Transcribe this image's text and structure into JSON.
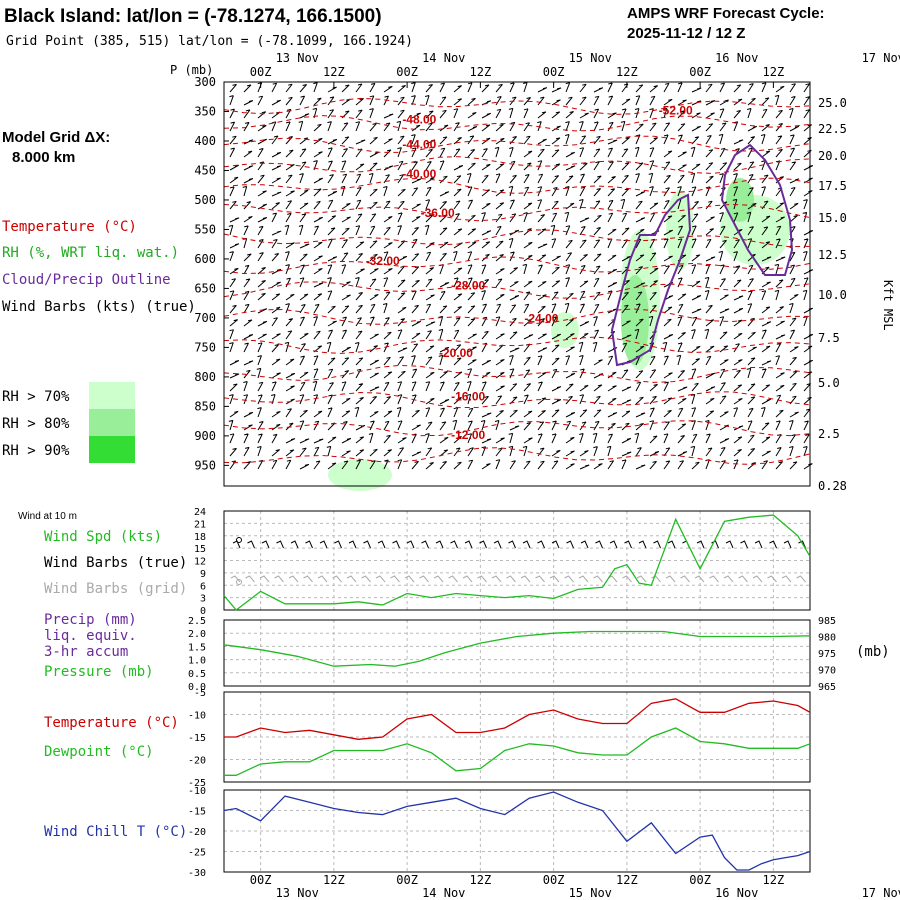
{
  "header": {
    "station_title": "Black Island:  lat/lon = (-78.1274, 166.1500)",
    "grid_point": "Grid Point (385, 515) lat/lon = (-78.1099, 166.1924)",
    "forecast_label": "AMPS WRF Forecast Cycle:",
    "forecast_cycle": "2025-11-12 / 12  Z"
  },
  "legend": {
    "model_grid": "Model Grid ΔX:",
    "model_dx": "8.000 km",
    "temperature": "Temperature (°C)",
    "rh": "RH (%, WRT liq. wat.)",
    "cloud": "Cloud/Precip Outline",
    "wind_barbs": "Wind Barbs (kts) (true)",
    "rh_levels": [
      {
        "label": "RH > 70%",
        "color": "#ccffcc"
      },
      {
        "label": "RH > 80%",
        "color": "#99ee99"
      },
      {
        "label": "RH > 90%",
        "color": "#33dd33"
      }
    ]
  },
  "colors": {
    "temperature": "#cc0000",
    "rh_label": "#22aa22",
    "cloud": "#6a2b9a",
    "wind_speed": "#22bb22",
    "grid_barbs": "#aaaaaa",
    "dewpoint": "#22bb22",
    "windchill": "#2233aa"
  },
  "time_axis": {
    "hour_labels": [
      "00Z",
      "12Z",
      "00Z",
      "12Z",
      "00Z",
      "12Z",
      "00Z",
      "12Z",
      "00Z",
      "12Z"
    ],
    "day_labels": [
      "13 Nov",
      "14 Nov",
      "15 Nov",
      "16 Nov",
      "17 Nov"
    ]
  },
  "chart_data": [
    {
      "type": "heatmap",
      "name": "upper-air-cross-section",
      "ylabel": "P (mb)",
      "pressure_ticks": [
        "300",
        "350",
        "400",
        "450",
        "500",
        "550",
        "600",
        "650",
        "700",
        "750",
        "800",
        "850",
        "900",
        "950"
      ],
      "pressure_range": [
        300,
        985
      ],
      "height_label": "Kft MSL",
      "height_ticks": [
        "25.0",
        "22.5",
        "20.0",
        "17.5",
        "15.0",
        "12.5",
        "10.0",
        "7.5",
        "5.0",
        "2.5",
        "0.28"
      ],
      "time_range_hours": [
        -6,
        90
      ],
      "isotherm_labels": [
        {
          "text": "-52.00",
          "t": 68,
          "p": 355
        },
        {
          "text": "-48.00",
          "t": 26,
          "p": 370
        },
        {
          "text": "-44.00",
          "t": 26,
          "p": 413
        },
        {
          "text": "-40.00",
          "t": 26,
          "p": 463
        },
        {
          "text": "-36.00",
          "t": 29,
          "p": 529
        },
        {
          "text": "-32.00",
          "t": 20,
          "p": 610
        },
        {
          "text": "-28.00",
          "t": 34,
          "p": 652
        },
        {
          "text": "-24.00",
          "t": 46,
          "p": 708
        },
        {
          "text": "-20.00",
          "t": 32,
          "p": 766
        },
        {
          "text": "-16.00",
          "t": 34,
          "p": 840
        },
        {
          "text": "-12.00",
          "t": 34,
          "p": 905
        }
      ]
    },
    {
      "type": "line",
      "name": "surface-wind-speed",
      "label": "Wind at 10 m",
      "series_labels": [
        "Wind Spd (kts)",
        "Wind Barbs (true)",
        "Wind Barbs (grid)"
      ],
      "ylim": [
        0,
        24
      ],
      "yticks": [
        "0",
        "3",
        "6",
        "9",
        "12",
        "15",
        "18",
        "21",
        "24"
      ],
      "x": [
        -6,
        -4,
        0,
        4,
        8,
        12,
        16,
        20,
        24,
        28,
        32,
        36,
        40,
        44,
        48,
        52,
        56,
        58,
        60,
        62,
        64,
        68,
        72,
        76,
        80,
        84,
        88,
        90
      ],
      "values": [
        3.5,
        0,
        4.5,
        1.5,
        1.5,
        1.5,
        2,
        1.2,
        4,
        3,
        4,
        3.5,
        3,
        3.5,
        2.8,
        5,
        5.5,
        10,
        11,
        6.5,
        6,
        22,
        10,
        21.5,
        22.5,
        23,
        18,
        13
      ]
    },
    {
      "type": "line",
      "name": "precip-pressure",
      "series_labels": [
        "Precip (mm)",
        "liq. equiv.",
        "3-hr accum",
        "Pressure (mb)"
      ],
      "ylim_left": [
        0,
        2.5
      ],
      "yticks_left": [
        "0.0",
        "0.5",
        "1.0",
        "1.5",
        "2.0",
        "2.5"
      ],
      "ylim_right": [
        965,
        985
      ],
      "yticks_right": [
        "965",
        "970",
        "975",
        "980",
        "985"
      ],
      "right_label": "(mb)",
      "x": [
        -6,
        0,
        6,
        12,
        18,
        22,
        26,
        30,
        36,
        42,
        48,
        54,
        60,
        66,
        72,
        78,
        84,
        90
      ],
      "values": [
        977.5,
        976,
        974,
        971,
        971.5,
        971,
        972.5,
        975,
        978,
        980,
        981,
        981.5,
        981.5,
        981.5,
        980,
        980,
        980,
        980.2
      ]
    },
    {
      "type": "line",
      "name": "temperature-dewpoint",
      "series_labels": [
        "Temperature (°C)",
        "Dewpoint (°C)"
      ],
      "ylim": [
        -25,
        -5
      ],
      "yticks": [
        "-25",
        "-20",
        "-15",
        "-10",
        "-5"
      ],
      "series": [
        {
          "name": "Temperature (°C)",
          "x": [
            -6,
            -4,
            0,
            4,
            8,
            12,
            16,
            20,
            24,
            28,
            32,
            36,
            40,
            44,
            48,
            52,
            56,
            60,
            64,
            68,
            72,
            76,
            80,
            84,
            88,
            90
          ],
          "values": [
            -15,
            -15,
            -13,
            -14,
            -13.5,
            -14.5,
            -15.5,
            -15,
            -11,
            -10,
            -14,
            -14,
            -13,
            -10,
            -9,
            -11,
            -12,
            -12,
            -7.5,
            -6.5,
            -9.5,
            -9.5,
            -7.5,
            -7,
            -8,
            -9.5
          ]
        },
        {
          "name": "Dewpoint (°C)",
          "x": [
            -6,
            -4,
            0,
            4,
            8,
            12,
            16,
            20,
            24,
            28,
            32,
            36,
            40,
            44,
            48,
            52,
            56,
            60,
            64,
            68,
            72,
            76,
            80,
            84,
            88,
            90
          ],
          "values": [
            -23.5,
            -23.5,
            -21,
            -20.5,
            -20.5,
            -18,
            -18,
            -18,
            -16.5,
            -18.5,
            -22.5,
            -22,
            -18,
            -16.5,
            -17,
            -18.5,
            -19,
            -19,
            -15,
            -13,
            -16,
            -16.5,
            -17.5,
            -17.5,
            -17.5,
            -16.5
          ]
        }
      ]
    },
    {
      "type": "line",
      "name": "wind-chill",
      "series_labels": [
        "Wind Chill T (°C)"
      ],
      "ylim": [
        -30,
        -10
      ],
      "yticks": [
        "-30",
        "-25",
        "-20",
        "-15",
        "-10"
      ],
      "x": [
        -6,
        -4,
        0,
        4,
        8,
        12,
        16,
        20,
        24,
        28,
        32,
        36,
        40,
        44,
        48,
        52,
        56,
        60,
        64,
        68,
        72,
        74,
        76,
        78,
        80,
        82,
        84,
        86,
        88,
        90
      ],
      "values": [
        -15,
        -14.5,
        -17.5,
        -11.5,
        -13,
        -14.5,
        -15.5,
        -16,
        -14,
        -13,
        -12,
        -14.5,
        -16,
        -12,
        -10.5,
        -13,
        -15,
        -22.5,
        -18,
        -25.5,
        -21.5,
        -21,
        -26.5,
        -29.5,
        -29.5,
        -28,
        -27,
        -26.5,
        -26,
        -25
      ]
    }
  ]
}
